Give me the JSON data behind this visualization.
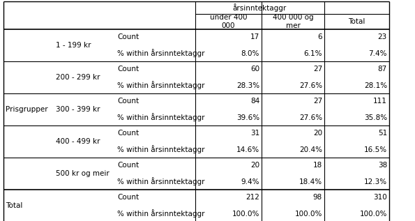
{
  "title_col1": "årsinntektaggr",
  "sub_col1": "under 400\n000",
  "sub_col2": "400 000 og\nmer",
  "sub_col3": "Total",
  "row_header1": "Prisgrupper",
  "row_header2": "Total",
  "groups": [
    {
      "name": "1 - 199 kr",
      "count": [
        "17",
        "6",
        "23"
      ],
      "pct": [
        "8.0%",
        "6.1%",
        "7.4%"
      ]
    },
    {
      "name": "200 - 299 kr",
      "count": [
        "60",
        "27",
        "87"
      ],
      "pct": [
        "28.3%",
        "27.6%",
        "28.1%"
      ]
    },
    {
      "name": "300 - 399 kr",
      "count": [
        "84",
        "27",
        "111"
      ],
      "pct": [
        "39.6%",
        "27.6%",
        "35.8%"
      ]
    },
    {
      "name": "400 - 499 kr",
      "count": [
        "31",
        "20",
        "51"
      ],
      "pct": [
        "14.6%",
        "20.4%",
        "16.5%"
      ]
    },
    {
      "name": "500 kr og meir",
      "count": [
        "20",
        "18",
        "38"
      ],
      "pct": [
        "9.4%",
        "18.4%",
        "12.3%"
      ]
    }
  ],
  "total_count": [
    "212",
    "98",
    "310"
  ],
  "total_pct": [
    "100.0%",
    "100.0%",
    "100.0%"
  ],
  "bg_color": "#ffffff",
  "border_color": "#000000",
  "font_size": 7.5,
  "header_font_size": 7.5
}
